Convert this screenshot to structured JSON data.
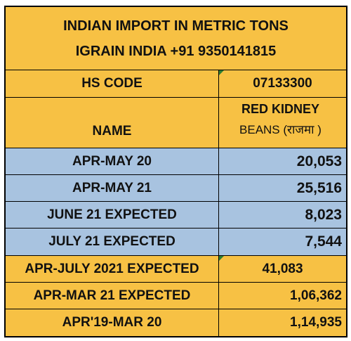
{
  "title": {
    "line1": "INDIAN IMPORT IN METRIC TONS",
    "line2": "IGRAIN INDIA +91 9350141815"
  },
  "hs": {
    "label": "HS CODE",
    "value": "07133300"
  },
  "name": {
    "label": "NAME",
    "value_line1": "RED KIDNEY",
    "value_line2": "BEANS  (राजमा )"
  },
  "rows": [
    {
      "label": "APR-MAY 20",
      "value": "20,053"
    },
    {
      "label": "APR-MAY 21",
      "value": "25,516"
    },
    {
      "label": "JUNE 21 EXPECTED",
      "value": "8,023"
    },
    {
      "label": "JULY 21 EXPECTED",
      "value": "7,544"
    },
    {
      "label": "APR-JULY 2021 EXPECTED",
      "value": "41,083"
    },
    {
      "label": "APR-MAR 21 EXPECTED",
      "value": "1,06,362"
    },
    {
      "label": "APR'19-MAR 20",
      "value": "1,14,935"
    }
  ],
  "colors": {
    "header": "#f7c144",
    "highlight_rows": "#a8c3e0",
    "border": "#000000",
    "comment_flag": "#2e7d32"
  }
}
